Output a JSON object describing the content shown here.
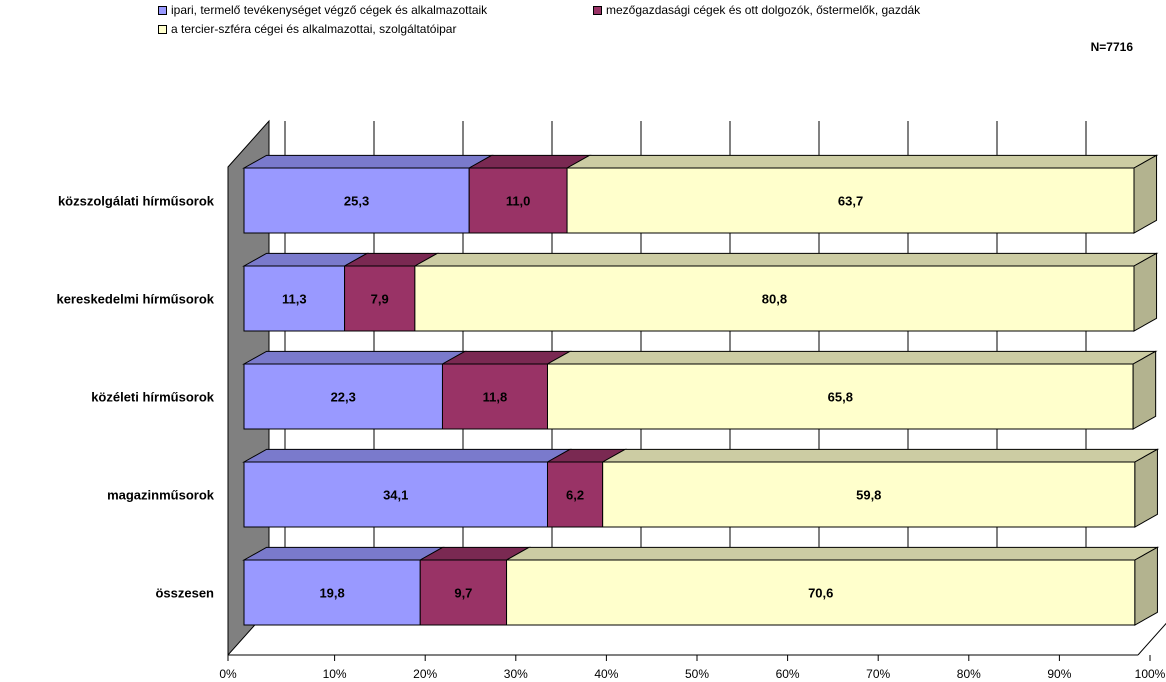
{
  "legend": {
    "items": [
      {
        "label": "ipari, termelő tevékenységet végző cégek és alkalmazottaik",
        "color": "#9999ff"
      },
      {
        "label": "mezőgazdasági cégek és ott dolgozók, őstermelők, gazdák",
        "color": "#993366"
      },
      {
        "label": "a tercier-szféra cégei és alkalmazottai, szolgáltatóipar",
        "color": "#ffffcc"
      }
    ]
  },
  "n_label": "N=7716",
  "chart_data": {
    "type": "bar",
    "orientation": "horizontal",
    "stacked": "percent",
    "style": "3d",
    "categories": [
      "közszolgálati hírműsorok",
      "kereskedelmi hírműsorok",
      "közéleti hírműsorok",
      "magazinműsorok",
      "összesen"
    ],
    "series": [
      {
        "name": "ipari, termelő tevékenységet végző cégek és alkalmazottaik",
        "values": [
          25.3,
          11.3,
          22.3,
          34.1,
          19.8
        ],
        "color": "#9999ff"
      },
      {
        "name": "mezőgazdasági cégek és ott dolgozók, őstermelők, gazdák",
        "values": [
          11.0,
          7.9,
          11.8,
          6.2,
          9.7
        ],
        "color": "#993366"
      },
      {
        "name": "a tercier-szféra cégei és alkalmazottai, szolgáltatóipar",
        "values": [
          63.7,
          80.8,
          65.8,
          59.8,
          70.6
        ],
        "color": "#ffffcc"
      }
    ],
    "data_labels": [
      [
        "25,3",
        "11,3",
        "22,3",
        "34,1",
        "19,8"
      ],
      [
        "11,0",
        "7,9",
        "11,8",
        "6,2",
        "9,7"
      ],
      [
        "63,7",
        "80,8",
        "65,8",
        "59,8",
        "70,6"
      ]
    ],
    "xlim": [
      0,
      100
    ],
    "xticks": [
      "0%",
      "10%",
      "20%",
      "30%",
      "40%",
      "50%",
      "60%",
      "70%",
      "80%",
      "90%",
      "100%"
    ],
    "grid": true,
    "legend_position": "top"
  }
}
